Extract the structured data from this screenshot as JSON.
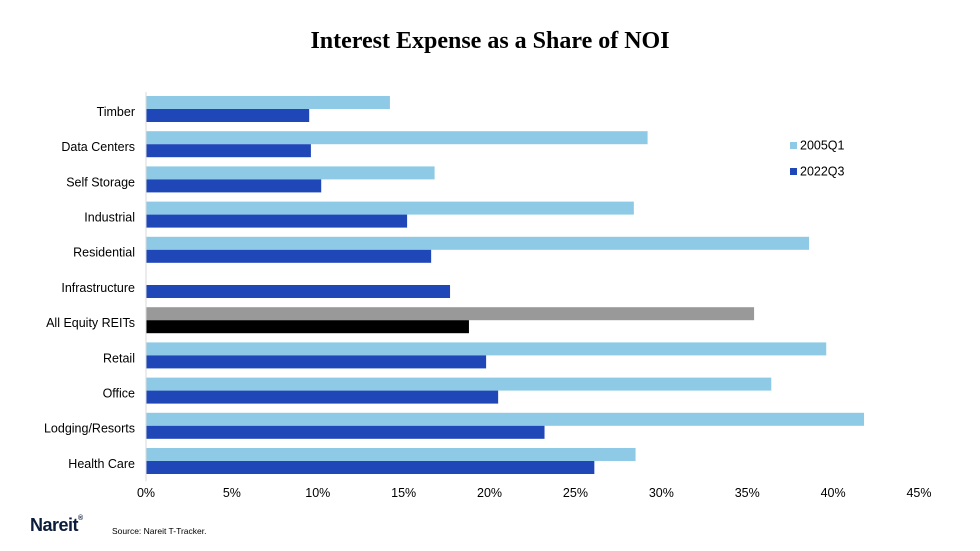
{
  "chart_data": {
    "type": "bar",
    "orientation": "horizontal",
    "title": "Interest Expense as a Share of NOI",
    "categories": [
      "Timber",
      "Data Centers",
      "Self Storage",
      "Industrial",
      "Residential",
      "Infrastructure",
      "All Equity REITs",
      "Retail",
      "Office",
      "Lodging/Resorts",
      "Health Care"
    ],
    "series": [
      {
        "name": "2005Q1",
        "color": "#8ecae6",
        "highlight_color": "#999999",
        "values": [
          14.2,
          29.2,
          16.8,
          28.4,
          38.6,
          null,
          35.4,
          39.6,
          36.4,
          41.8,
          28.5
        ]
      },
      {
        "name": "2022Q3",
        "color": "#1f47b8",
        "highlight_color": "#000000",
        "values": [
          9.5,
          9.6,
          10.2,
          15.2,
          16.6,
          17.7,
          18.8,
          19.8,
          20.5,
          23.2,
          26.1
        ]
      }
    ],
    "highlight_category": "All Equity REITs",
    "x_ticks": [
      "0%",
      "5%",
      "10%",
      "15%",
      "20%",
      "25%",
      "30%",
      "35%",
      "40%",
      "45%"
    ],
    "xlim": [
      0,
      45
    ],
    "legend_position": "top-right",
    "grid": false
  },
  "footer": {
    "logo_text": "Nareit",
    "logo_mark": "®",
    "source": "Source: Nareit T-Tracker."
  }
}
